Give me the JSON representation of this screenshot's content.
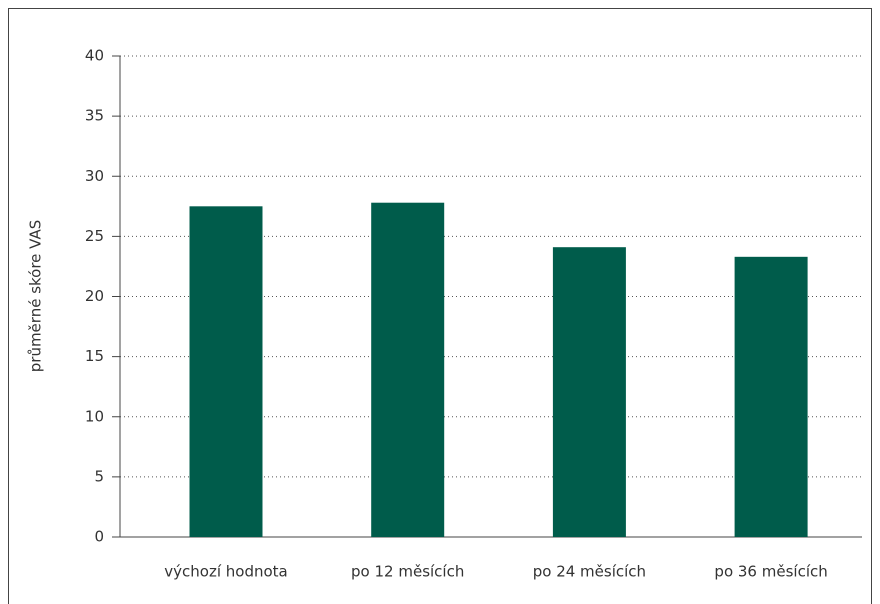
{
  "chart_data": {
    "type": "bar",
    "y_label": "průměrné skóre VAS",
    "categories": [
      "výchozí hodnota",
      "po 12 měsících",
      "po 24 měsících",
      "po 36 měsících"
    ],
    "values": [
      27.5,
      27.8,
      24.1,
      23.3
    ],
    "color": "#005c4b",
    "ylim": [
      0,
      40
    ],
    "yticks": [
      0,
      5,
      10,
      15,
      20,
      25,
      30,
      35,
      40
    ],
    "grid": true
  }
}
